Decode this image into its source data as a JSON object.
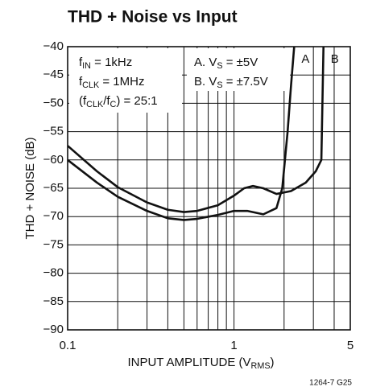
{
  "chart_data": {
    "type": "line",
    "title": "THD + Noise vs Input",
    "xlabel": [
      {
        "text": "INPUT AMPLITUDE (V"
      },
      {
        "text": "RMS",
        "sub": true
      },
      {
        "text": ")"
      }
    ],
    "ylabel": "THD + NOISE (dB)",
    "footnote": "1264-7 G25",
    "xscale": "log",
    "xlim": [
      0.1,
      5
    ],
    "ylim": [
      -90,
      -40
    ],
    "xticks": [
      0.1,
      1,
      5
    ],
    "xgrid_minor": [
      0.2,
      0.3,
      0.4,
      0.5,
      0.6,
      0.7,
      0.8,
      0.9,
      2,
      3,
      4
    ],
    "yticks": [
      {
        "value": -40,
        "label": "−40"
      },
      {
        "value": -45,
        "label": "−45"
      },
      {
        "value": -50,
        "label": "−50"
      },
      {
        "value": -55,
        "label": "−55"
      },
      {
        "value": -60,
        "label": "−60"
      },
      {
        "value": -65,
        "label": "−65"
      },
      {
        "value": -70,
        "label": "−70"
      },
      {
        "value": -75,
        "label": "−75"
      },
      {
        "value": -80,
        "label": "−80"
      },
      {
        "value": -85,
        "label": "−85"
      },
      {
        "value": -90,
        "label": "−90"
      }
    ],
    "grid": true,
    "annotations": [
      [
        {
          "text": "f"
        },
        {
          "text": "IN",
          "sub": true
        },
        {
          "text": " = 1kHz"
        }
      ],
      [
        {
          "text": "f"
        },
        {
          "text": "CLK",
          "sub": true
        },
        {
          "text": " = 1MHz"
        }
      ],
      [
        {
          "text": "(f"
        },
        {
          "text": "CLK",
          "sub": true
        },
        {
          "text": "/f"
        },
        {
          "text": "C",
          "sub": true
        },
        {
          "text": ") = 25:1"
        }
      ],
      [
        {
          "text": "A. V"
        },
        {
          "text": "S",
          "sub": true
        },
        {
          "text": " = ±5V"
        }
      ],
      [
        {
          "text": "B. V"
        },
        {
          "text": "S",
          "sub": true
        },
        {
          "text": " = ±7.5V"
        }
      ]
    ],
    "series": [
      {
        "name": "A",
        "color": "#111111",
        "x": [
          0.1,
          0.15,
          0.2,
          0.3,
          0.4,
          0.5,
          0.6,
          0.8,
          1.0,
          1.2,
          1.5,
          1.8,
          1.95,
          2.1,
          2.2,
          2.3
        ],
        "values": [
          -60,
          -64,
          -66.5,
          -69,
          -70.3,
          -70.6,
          -70.4,
          -69.7,
          -69,
          -69,
          -69.6,
          -68.5,
          -65,
          -55,
          -47,
          -40
        ]
      },
      {
        "name": "B",
        "color": "#111111",
        "x": [
          0.1,
          0.15,
          0.2,
          0.3,
          0.4,
          0.5,
          0.6,
          0.8,
          1.0,
          1.15,
          1.3,
          1.5,
          1.8,
          2.2,
          2.7,
          3.1,
          3.35,
          3.4,
          3.45
        ],
        "values": [
          -57.5,
          -62,
          -64.8,
          -67.5,
          -68.8,
          -69.2,
          -69,
          -68,
          -66.3,
          -65,
          -64.6,
          -65,
          -66,
          -65.5,
          -64,
          -62,
          -60,
          -50,
          -40
        ]
      }
    ]
  }
}
